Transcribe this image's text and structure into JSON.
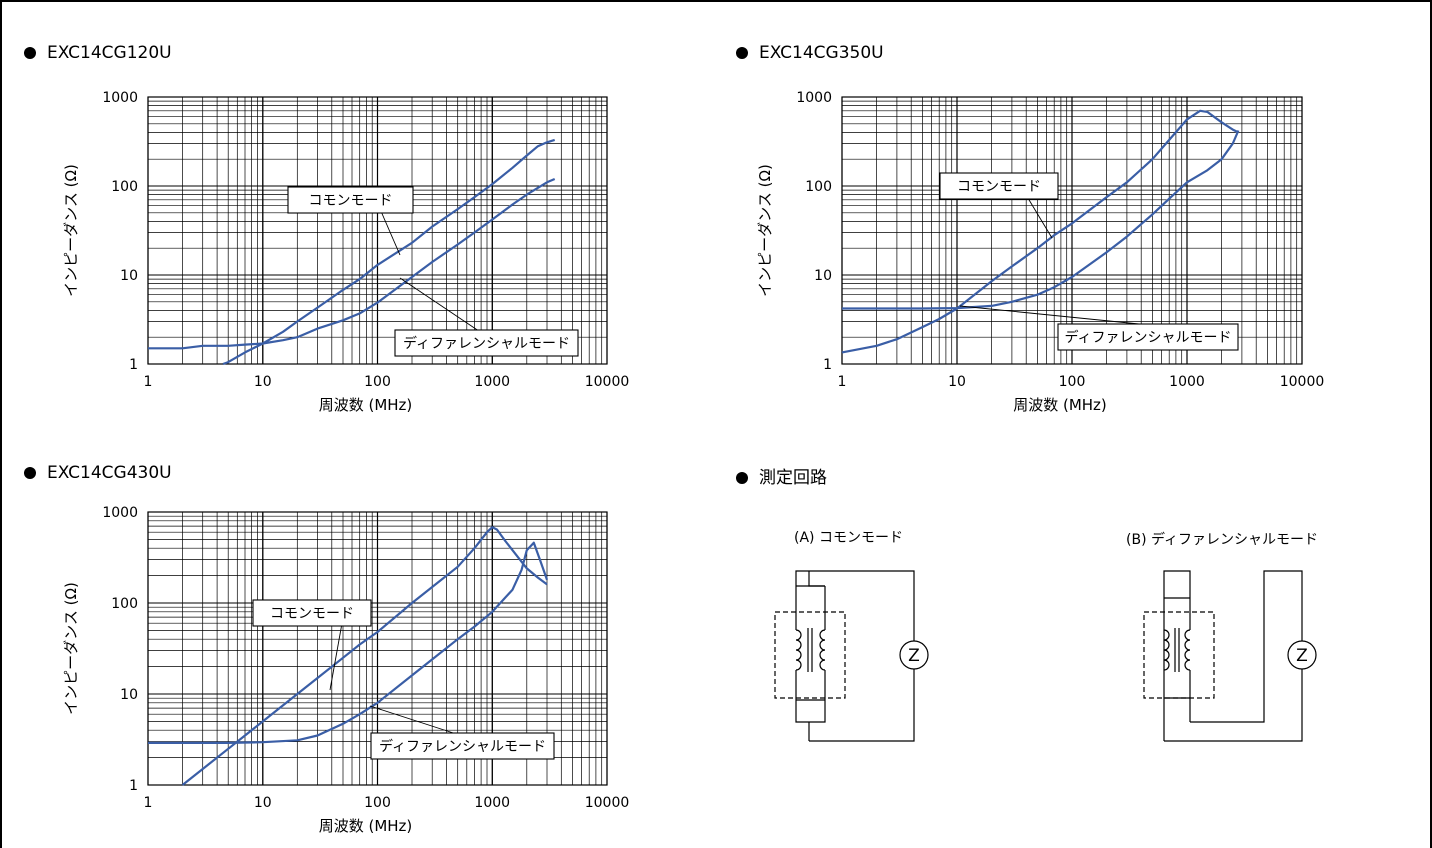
{
  "panels": [
    {
      "title": "EXC14CG120U"
    },
    {
      "title": "EXC14CG350U"
    },
    {
      "title": "EXC14CG430U"
    },
    {
      "title": "測定回路"
    }
  ],
  "circuit": {
    "label_a": "(A) コモンモード",
    "label_b": "(B) ディファレンシャルモード",
    "meter": "Z"
  },
  "colors": {
    "curve": "#3a5ea6",
    "grid": "#000000"
  },
  "chart_data": [
    {
      "type": "line",
      "title": "EXC14CG120U",
      "xlabel": "周波数 (MHz)",
      "ylabel": "インピーダンス (Ω)",
      "x_scale": "log",
      "y_scale": "log",
      "xlim": [
        1,
        10000
      ],
      "ylim": [
        1,
        1000
      ],
      "xticks": [
        "1",
        "10",
        "100",
        "1000",
        "10000"
      ],
      "yticks": [
        "1",
        "10",
        "100",
        "1000"
      ],
      "grid": true,
      "series": [
        {
          "name": "コモンモード",
          "x": [
            4.5,
            5,
            7,
            10,
            15,
            20,
            30,
            50,
            70,
            100,
            200,
            300,
            500,
            700,
            1000,
            1500,
            2000,
            2500,
            3000,
            3500
          ],
          "y": [
            1.0,
            1.05,
            1.35,
            1.7,
            2.3,
            3.0,
            4.3,
            6.8,
            9.0,
            13,
            23,
            35,
            55,
            75,
            105,
            160,
            220,
            280,
            310,
            330
          ]
        },
        {
          "name": "ディファレンシャルモード",
          "x": [
            1,
            2,
            3,
            5,
            7,
            10,
            15,
            20,
            30,
            50,
            70,
            100,
            200,
            300,
            500,
            700,
            1000,
            1500,
            2000,
            3000,
            3500
          ],
          "y": [
            1.5,
            1.5,
            1.6,
            1.6,
            1.65,
            1.7,
            1.85,
            2.0,
            2.5,
            3.1,
            3.7,
            4.9,
            9.5,
            14,
            22,
            30,
            42,
            62,
            80,
            110,
            120
          ]
        }
      ],
      "annotations": [
        "コモンモード",
        "ディファレンシャルモード"
      ]
    },
    {
      "type": "line",
      "title": "EXC14CG350U",
      "xlabel": "周波数 (MHz)",
      "ylabel": "インピーダンス (Ω)",
      "x_scale": "log",
      "y_scale": "log",
      "xlim": [
        1,
        10000
      ],
      "ylim": [
        1,
        1000
      ],
      "xticks": [
        "1",
        "10",
        "100",
        "1000",
        "10000"
      ],
      "yticks": [
        "1",
        "10",
        "100",
        "1000"
      ],
      "grid": true,
      "series": [
        {
          "name": "コモンモード",
          "x": [
            1,
            2,
            3,
            5,
            7,
            10,
            20,
            30,
            50,
            70,
            100,
            200,
            300,
            500,
            700,
            1000,
            1300,
            1500,
            2000,
            2500,
            2800
          ],
          "y": [
            1.35,
            1.6,
            1.9,
            2.6,
            3.2,
            4.2,
            8.5,
            12.5,
            20,
            28,
            38,
            75,
            110,
            200,
            330,
            560,
            700,
            680,
            520,
            430,
            400
          ]
        },
        {
          "name": "ディファレンシャルモード",
          "x": [
            1,
            3,
            5,
            10,
            20,
            30,
            50,
            70,
            100,
            200,
            300,
            500,
            700,
            1000,
            1500,
            2000,
            2500,
            2800
          ],
          "y": [
            4.2,
            4.2,
            4.2,
            4.25,
            4.5,
            5.0,
            6.0,
            7.3,
            9.5,
            18,
            27,
            48,
            72,
            110,
            150,
            200,
            300,
            420
          ]
        }
      ],
      "annotations": [
        "コモンモード",
        "ディファレンシャルモード"
      ]
    },
    {
      "type": "line",
      "title": "EXC14CG430U",
      "xlabel": "周波数 (MHz)",
      "ylabel": "インピーダンス (Ω)",
      "x_scale": "log",
      "y_scale": "log",
      "xlim": [
        1,
        10000
      ],
      "ylim": [
        1,
        1000
      ],
      "xticks": [
        "1",
        "10",
        "100",
        "1000",
        "10000"
      ],
      "yticks": [
        "1",
        "10",
        "100",
        "1000"
      ],
      "grid": true,
      "series": [
        {
          "name": "コモンモード",
          "x": [
            2.0,
            3,
            5,
            7,
            10,
            20,
            30,
            50,
            70,
            100,
            200,
            300,
            500,
            700,
            900,
            1000,
            1100,
            1300,
            1500,
            2000,
            2500,
            3000
          ],
          "y": [
            1.0,
            1.5,
            2.5,
            3.5,
            5.0,
            10,
            15,
            25,
            35,
            48,
            100,
            150,
            250,
            400,
            600,
            680,
            640,
            480,
            380,
            240,
            190,
            160
          ]
        },
        {
          "name": "ディファレンシャルモード",
          "x": [
            1,
            3,
            5,
            10,
            20,
            30,
            50,
            70,
            100,
            200,
            300,
            500,
            700,
            1000,
            1500,
            1800,
            2000,
            2300,
            2600,
            3000
          ],
          "y": [
            2.9,
            2.9,
            2.9,
            2.95,
            3.1,
            3.5,
            4.7,
            6.0,
            8.0,
            16,
            24,
            40,
            55,
            80,
            140,
            230,
            380,
            460,
            300,
            180
          ]
        }
      ],
      "annotations": [
        "コモンモード",
        "ディファレンシャルモード"
      ]
    }
  ]
}
